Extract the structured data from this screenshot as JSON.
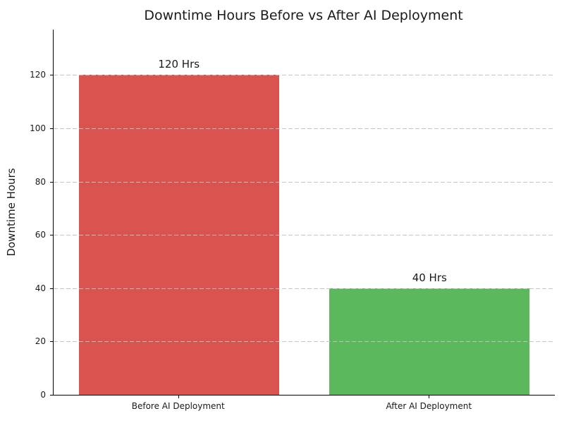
{
  "figure": {
    "background": "#ffffff",
    "text_color": "#1a1a1a",
    "spine_color": "#000000",
    "grid_color": "#c3c3c3"
  },
  "chart_data": {
    "type": "bar",
    "title": "Downtime Hours Before vs After AI Deployment",
    "ylabel": "Downtime Hours",
    "xlabel": "",
    "categories": [
      "Before AI Deployment",
      "After AI Deployment"
    ],
    "values": [
      120,
      40
    ],
    "bar_labels": [
      "120 Hrs",
      "40 Hrs"
    ],
    "bar_colors": [
      "#d9534f",
      "#5cb85c"
    ],
    "yticks": [
      0,
      20,
      40,
      60,
      80,
      100,
      120
    ],
    "ylim": [
      0,
      137
    ],
    "bar_width_fraction": 0.8,
    "grid": {
      "axis": "y",
      "style": "dashed",
      "on": true
    },
    "legend": null
  }
}
